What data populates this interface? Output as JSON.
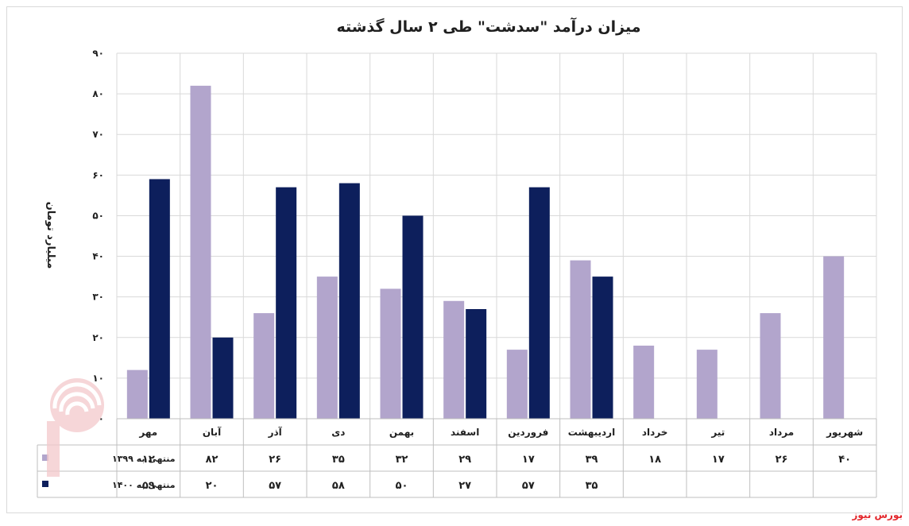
{
  "chart_data": {
    "type": "bar",
    "title": "میزان درآمد \"سدشت\" طی ۲ سال گذشته",
    "ylabel": "میلیارد تومان",
    "ylim": [
      0,
      90
    ],
    "yticks": [
      "۰",
      "۱۰",
      "۲۰",
      "۳۰",
      "۴۰",
      "۵۰",
      "۶۰",
      "۷۰",
      "۸۰",
      "۹۰"
    ],
    "categories": [
      "مهر",
      "آبان",
      "آذر",
      "دی",
      "بهمن",
      "اسفند",
      "فروردین",
      "اردیبهشت",
      "خرداد",
      "تیر",
      "مرداد",
      "شهریور"
    ],
    "series": [
      {
        "name": "منتهی به ۱۳۹۹",
        "color": "#b2a5cc",
        "values": [
          12,
          82,
          26,
          35,
          32,
          29,
          17,
          39,
          18,
          17,
          26,
          40
        ],
        "labels": [
          "۱۲",
          "۸۲",
          "۲۶",
          "۳۵",
          "۳۲",
          "۲۹",
          "۱۷",
          "۳۹",
          "۱۸",
          "۱۷",
          "۲۶",
          "۴۰"
        ]
      },
      {
        "name": "منتهی به ۱۴۰۰",
        "color": "#0d1f5c",
        "values": [
          59,
          20,
          57,
          58,
          50,
          27,
          57,
          35,
          null,
          null,
          null,
          null
        ],
        "labels": [
          "۵۹",
          "۲۰",
          "۵۷",
          "۵۸",
          "۵۰",
          "۲۷",
          "۵۷",
          "۳۵",
          "",
          "",
          "",
          ""
        ]
      }
    ],
    "grid": true,
    "legend": "data-table"
  },
  "source": "بورس نیوز"
}
